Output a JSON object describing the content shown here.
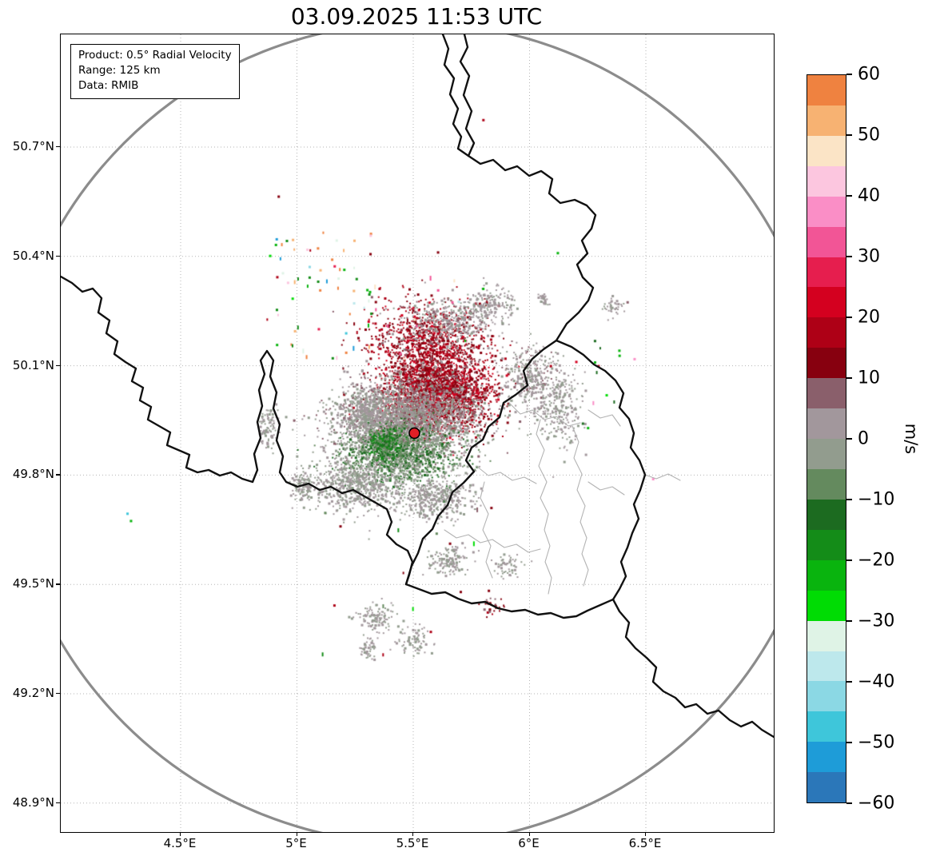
{
  "title": "03.09.2025 11:53 UTC",
  "info_box": {
    "product": "Product: 0.5° Radial Velocity",
    "range": "Range: 125 km",
    "data": "Data: RMIB"
  },
  "axes": {
    "lat_ticks": [
      {
        "label": "50.7°N",
        "value": 50.7
      },
      {
        "label": "50.4°N",
        "value": 50.4
      },
      {
        "label": "50.1°N",
        "value": 50.1
      },
      {
        "label": "49.8°N",
        "value": 49.8
      },
      {
        "label": "49.5°N",
        "value": 49.5
      },
      {
        "label": "49.2°N",
        "value": 49.2
      },
      {
        "label": "48.9°N",
        "value": 48.9
      }
    ],
    "lon_ticks": [
      {
        "label": "4.5°E",
        "value": 4.5
      },
      {
        "label": "5°E",
        "value": 5.0
      },
      {
        "label": "5.5°E",
        "value": 5.5
      },
      {
        "label": "6°E",
        "value": 6.0
      },
      {
        "label": "6.5°E",
        "value": 6.5
      }
    ]
  },
  "colorbar": {
    "label": "m/s",
    "tick_values": [
      60,
      50,
      40,
      30,
      20,
      10,
      0,
      -10,
      -20,
      -30,
      -40,
      -50,
      -60
    ],
    "tick_labels": [
      "60",
      "50",
      "40",
      "30",
      "20",
      "10",
      "0",
      "−10",
      "−20",
      "−30",
      "−40",
      "−50",
      "−60"
    ],
    "bands": [
      {
        "v": [
          55,
          60
        ],
        "color": "#ef8240"
      },
      {
        "v": [
          50,
          55
        ],
        "color": "#f7b272"
      },
      {
        "v": [
          45,
          50
        ],
        "color": "#fbe4c6"
      },
      {
        "v": [
          40,
          45
        ],
        "color": "#fcc6df"
      },
      {
        "v": [
          35,
          40
        ],
        "color": "#fa8ec6"
      },
      {
        "v": [
          30,
          35
        ],
        "color": "#f25596"
      },
      {
        "v": [
          25,
          30
        ],
        "color": "#e61e4e"
      },
      {
        "v": [
          20,
          25
        ],
        "color": "#d4001f"
      },
      {
        "v": [
          15,
          20
        ],
        "color": "#ae0016"
      },
      {
        "v": [
          10,
          15
        ],
        "color": "#87000f"
      },
      {
        "v": [
          5,
          10
        ],
        "color": "#8a5f6b"
      },
      {
        "v": [
          0,
          5
        ],
        "color": "#a2979c"
      },
      {
        "v": [
          -5,
          0
        ],
        "color": "#929c8e"
      },
      {
        "v": [
          -10,
          -5
        ],
        "color": "#648a5e"
      },
      {
        "v": [
          -15,
          -10
        ],
        "color": "#1c6b20"
      },
      {
        "v": [
          -20,
          -15
        ],
        "color": "#148c18"
      },
      {
        "v": [
          -25,
          -20
        ],
        "color": "#09b40e"
      },
      {
        "v": [
          -30,
          -25
        ],
        "color": "#00dc04"
      },
      {
        "v": [
          -35,
          -30
        ],
        "color": "#dff3e6"
      },
      {
        "v": [
          -40,
          -35
        ],
        "color": "#bde8ec"
      },
      {
        "v": [
          -45,
          -40
        ],
        "color": "#8bd8e4"
      },
      {
        "v": [
          -50,
          -45
        ],
        "color": "#3ec6da"
      },
      {
        "v": [
          -55,
          -50
        ],
        "color": "#1e9cd8"
      },
      {
        "v": [
          -60,
          -55
        ],
        "color": "#2b77b9"
      }
    ]
  },
  "chart_data": {
    "type": "heatmap",
    "description": "Doppler radar PPI of 0.5° radial velocity (m/s) centred on the radar site; dark-red echoes (outbound ~+10..+22 m/s) north-east of the radar, grey near-zero echoes around the site, green inbound echoes (~-1..-20 m/s) to the south-west, plus scattered clutter.",
    "units": "m/s",
    "value_range": [
      -60,
      60
    ],
    "xlabel_unit": "°E",
    "ylabel_unit": "°N",
    "xlim": [
      3.985,
      7.05
    ],
    "ylim": [
      48.82,
      51.01
    ],
    "grid": true,
    "radar_site": {
      "lon": 5.505,
      "lat": 49.915,
      "marker_color": "#e01f26"
    },
    "range_km": 125,
    "range_circle_color": "#8c8c8c",
    "clusters": [
      {
        "name": "outbound-core",
        "lon": 5.6,
        "lat": 50.03,
        "slon": 0.115,
        "slat": 0.055,
        "n": 2400,
        "v": [
          8,
          22
        ],
        "size": 2
      },
      {
        "name": "outbound-upper",
        "lon": 5.56,
        "lat": 50.17,
        "slon": 0.13,
        "slat": 0.055,
        "n": 900,
        "v": [
          9,
          21
        ],
        "size": 2
      },
      {
        "name": "near-zero-blob",
        "lon": 5.46,
        "lat": 49.95,
        "slon": 0.15,
        "slat": 0.055,
        "n": 2600,
        "v": [
          -4,
          7
        ],
        "size": 2
      },
      {
        "name": "inbound-band",
        "lon": 5.44,
        "lat": 49.86,
        "slon": 0.13,
        "slat": 0.04,
        "n": 1300,
        "v": [
          -14,
          -1
        ],
        "size": 2
      },
      {
        "name": "inbound-core",
        "lon": 5.38,
        "lat": 49.885,
        "slon": 0.035,
        "slat": 0.022,
        "n": 300,
        "v": [
          -20,
          -6
        ],
        "size": 2
      },
      {
        "name": "west-gray",
        "lon": 5.295,
        "lat": 49.965,
        "slon": 0.05,
        "slat": 0.03,
        "n": 350,
        "v": [
          -3,
          5
        ],
        "size": 2
      },
      {
        "name": "north-gray",
        "lon": 5.66,
        "lat": 50.22,
        "slon": 0.09,
        "slat": 0.035,
        "n": 400,
        "v": [
          -2,
          6
        ],
        "size": 2
      },
      {
        "name": "ne-gray-1",
        "lon": 5.83,
        "lat": 50.27,
        "slon": 0.05,
        "slat": 0.022,
        "n": 160,
        "v": [
          -2,
          5
        ],
        "size": 2
      },
      {
        "name": "east-gray-1",
        "lon": 6.01,
        "lat": 50.07,
        "slon": 0.06,
        "slat": 0.045,
        "n": 320,
        "v": [
          -3,
          6
        ],
        "size": 2
      },
      {
        "name": "east-gray-2",
        "lon": 6.13,
        "lat": 49.99,
        "slon": 0.05,
        "slat": 0.05,
        "n": 260,
        "v": [
          -3,
          5
        ],
        "size": 2
      },
      {
        "name": "sw-gray",
        "lon": 5.26,
        "lat": 49.77,
        "slon": 0.1,
        "slat": 0.038,
        "n": 650,
        "v": [
          -4,
          4
        ],
        "size": 2
      },
      {
        "name": "south-gray",
        "lon": 5.6,
        "lat": 49.74,
        "slon": 0.08,
        "slat": 0.03,
        "n": 420,
        "v": [
          -4,
          5
        ],
        "size": 2
      },
      {
        "name": "south-gray-2",
        "lon": 5.03,
        "lat": 49.77,
        "slon": 0.025,
        "slat": 0.02,
        "n": 110,
        "v": [
          -3,
          3
        ],
        "size": 2
      },
      {
        "name": "west-small",
        "lon": 4.88,
        "lat": 49.93,
        "slon": 0.02,
        "slat": 0.028,
        "n": 90,
        "v": [
          -3,
          4
        ],
        "size": 2
      },
      {
        "name": "far-south-1",
        "lon": 5.65,
        "lat": 49.56,
        "slon": 0.045,
        "slat": 0.022,
        "n": 140,
        "v": [
          -3,
          4
        ],
        "size": 2
      },
      {
        "name": "far-south-2",
        "lon": 5.34,
        "lat": 49.41,
        "slon": 0.04,
        "slat": 0.02,
        "n": 110,
        "v": [
          -3,
          4
        ],
        "size": 2
      },
      {
        "name": "far-south-3",
        "lon": 5.51,
        "lat": 49.345,
        "slon": 0.035,
        "slat": 0.018,
        "n": 80,
        "v": [
          -3,
          3
        ],
        "size": 2
      },
      {
        "name": "far-south-4",
        "lon": 5.31,
        "lat": 49.325,
        "slon": 0.02,
        "slat": 0.015,
        "n": 50,
        "v": [
          -2,
          3
        ],
        "size": 2
      },
      {
        "name": "se-small",
        "lon": 5.9,
        "lat": 49.55,
        "slon": 0.03,
        "slat": 0.015,
        "n": 60,
        "v": [
          -3,
          4
        ],
        "size": 2
      },
      {
        "name": "s-red-bits",
        "lon": 5.84,
        "lat": 49.44,
        "slon": 0.02,
        "slat": 0.012,
        "n": 30,
        "v": [
          8,
          16
        ],
        "size": 2
      },
      {
        "name": "ne-far",
        "lon": 6.06,
        "lat": 50.28,
        "slon": 0.015,
        "slat": 0.01,
        "n": 30,
        "v": [
          -2,
          4
        ],
        "size": 2
      },
      {
        "name": "e-far-gray",
        "lon": 6.36,
        "lat": 50.26,
        "slon": 0.02,
        "slat": 0.012,
        "n": 40,
        "v": [
          -2,
          4
        ],
        "size": 2
      }
    ],
    "speck_boxes": [
      {
        "name": "nw-clutter",
        "lon": [
          4.85,
          5.33
        ],
        "lat": [
          50.12,
          50.47
        ],
        "n": 60,
        "v_choices": [
          -30,
          -25,
          -45,
          25,
          40,
          50,
          -20,
          55,
          15,
          -55,
          -35
        ]
      },
      {
        "name": "north-edge-clutter",
        "lon": [
          5.2,
          5.95
        ],
        "lat": [
          50.12,
          50.35
        ],
        "n": 22,
        "v_choices": [
          -25,
          30,
          -40,
          45,
          12
        ]
      },
      {
        "name": "east-clutter",
        "lon": [
          6.18,
          6.48
        ],
        "lat": [
          49.92,
          50.18
        ],
        "n": 10,
        "v_choices": [
          -25,
          20,
          35,
          -15
        ]
      },
      {
        "name": "south-clutter",
        "lon": [
          5.05,
          5.95
        ],
        "lat": [
          49.3,
          49.72
        ],
        "n": 16,
        "v_choices": [
          -20,
          15,
          -30,
          8,
          12,
          -8
        ]
      }
    ],
    "singles": [
      {
        "lon": 4.92,
        "lat": 50.565,
        "v": 12
      },
      {
        "lon": 6.12,
        "lat": 50.41,
        "v": -25
      },
      {
        "lon": 6.28,
        "lat": 50.11,
        "v": -25
      },
      {
        "lon": 6.295,
        "lat": 50.1,
        "v": 15
      },
      {
        "lon": 6.33,
        "lat": 50.02,
        "v": -30
      },
      {
        "lon": 6.53,
        "lat": 49.79,
        "v": 35
      },
      {
        "lon": 4.27,
        "lat": 49.695,
        "v": -50
      },
      {
        "lon": 4.285,
        "lat": 49.675,
        "v": -25
      },
      {
        "lon": 4.98,
        "lat": 50.285,
        "v": -30
      },
      {
        "lon": 5.21,
        "lat": 50.19,
        "v": -50
      },
      {
        "lon": 6.09,
        "lat": 50.1,
        "v": 18
      },
      {
        "lon": 6.25,
        "lat": 49.93,
        "v": -25
      },
      {
        "lon": 5.8,
        "lat": 50.775,
        "v": 18
      },
      {
        "lon": 6.42,
        "lat": 50.275,
        "v": 8
      }
    ]
  }
}
